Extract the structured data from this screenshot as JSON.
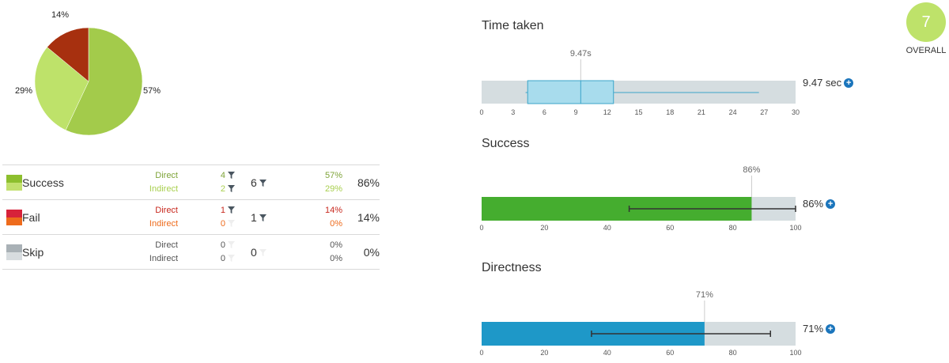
{
  "chart_data": [
    {
      "type": "pie",
      "slices": [
        {
          "value": 57,
          "label": "57%",
          "color": "#a3cb4b"
        },
        {
          "value": 29,
          "label": "29%",
          "color": "#bee26a"
        },
        {
          "value": 14,
          "label": "14%",
          "color": "#a7300f"
        }
      ]
    },
    {
      "type": "box",
      "title": "Time taken",
      "axis_min": 0,
      "axis_max": 30,
      "ticks": [
        "0",
        "3",
        "6",
        "9",
        "12",
        "15",
        "18",
        "21",
        "24",
        "27",
        "30"
      ],
      "min": 4.2,
      "q1": 4.4,
      "median": 9.47,
      "q3": 12.6,
      "max": 26.5,
      "median_label": "9.47s",
      "value_label": "9.47 sec",
      "color": "#a8dced"
    },
    {
      "type": "bar",
      "title": "Success",
      "axis_min": 0,
      "axis_max": 100,
      "ticks": [
        "0",
        "20",
        "40",
        "60",
        "80",
        "100"
      ],
      "value": 86,
      "value_label": "86%",
      "marker_label": "86%",
      "error_low": 47,
      "error_high": 100,
      "color": "#45ad2f"
    },
    {
      "type": "bar",
      "title": "Directness",
      "axis_min": 0,
      "axis_max": 100,
      "ticks": [
        "0",
        "20",
        "40",
        "60",
        "80",
        "100"
      ],
      "value": 71,
      "value_label": "71%",
      "marker_label": "71%",
      "error_low": 35,
      "error_high": 92,
      "color": "#1e98c8"
    }
  ],
  "table": {
    "rows": [
      {
        "label": "Success",
        "colors": [
          "#8dbf2e",
          "#c2e06e"
        ],
        "direct": {
          "label": "Direct",
          "count": "4",
          "pct": "57%",
          "color": "#7fa43a"
        },
        "indirect": {
          "label": "Indirect",
          "count": "2",
          "pct": "29%",
          "color": "#a8cf4e"
        },
        "total": "6",
        "overall": "86%"
      },
      {
        "label": "Fail",
        "colors": [
          "#d7223a",
          "#ee6b1c"
        ],
        "direct": {
          "label": "Direct",
          "count": "1",
          "pct": "14%",
          "color": "#c8281e"
        },
        "indirect": {
          "label": "Indirect",
          "count": "0",
          "pct": "0%",
          "color": "#ee6b1c"
        },
        "total": "1",
        "overall": "14%"
      },
      {
        "label": "Skip",
        "colors": [
          "#a9b1b6",
          "#d7dcdf"
        ],
        "direct": {
          "label": "Direct",
          "count": "0",
          "pct": "0%",
          "color": "#555555"
        },
        "indirect": {
          "label": "Indirect",
          "count": "0",
          "pct": "0%",
          "color": "#555555"
        },
        "total": "0",
        "overall": "0%"
      }
    ]
  },
  "score": {
    "value": "7",
    "label": "OVERALL",
    "color": "#bee26a"
  }
}
